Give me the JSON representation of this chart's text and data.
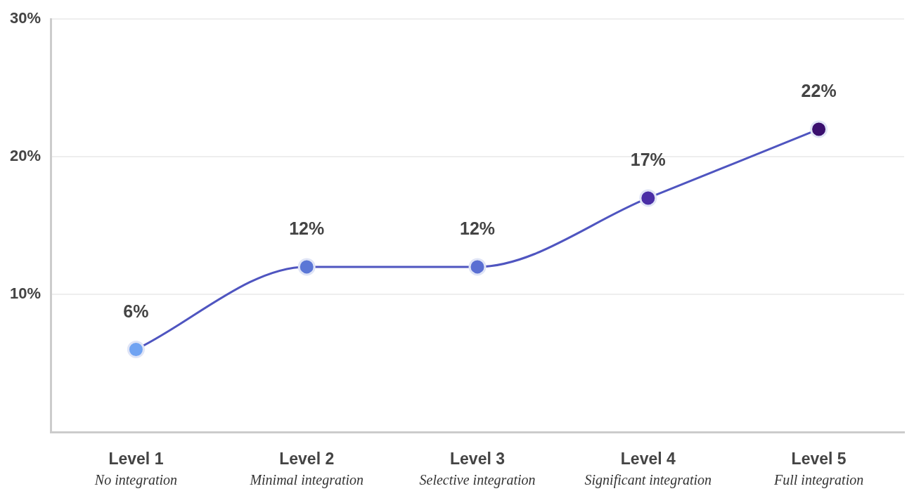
{
  "chart_data": {
    "type": "line",
    "categories": [
      "Level 1\nNo integration",
      "Level 2\nMinimal integration",
      "Level 3\nSelective integration",
      "Level 4\nSignificant integration",
      "Level 5\nFull integration"
    ],
    "series": [
      {
        "color": "#4f55c0",
        "colors": [
          "#70a3f2",
          "#5b77d6",
          "#5a6fd2",
          "#4a2ea6",
          "#3a0f6e"
        ],
        "values": [
          6,
          12,
          12,
          17,
          22
        ],
        "value_labels": [
          "6%",
          "12%",
          "12%",
          "17%",
          "22%"
        ]
      }
    ],
    "ylim": [
      0,
      30
    ],
    "yticks": [
      {
        "value": 10,
        "label": "10%"
      },
      {
        "value": 20,
        "label": "20%"
      },
      {
        "value": 30,
        "label": "30%"
      }
    ],
    "grid": "y",
    "legend": false,
    "marker": "circle",
    "line_style": "solid"
  }
}
